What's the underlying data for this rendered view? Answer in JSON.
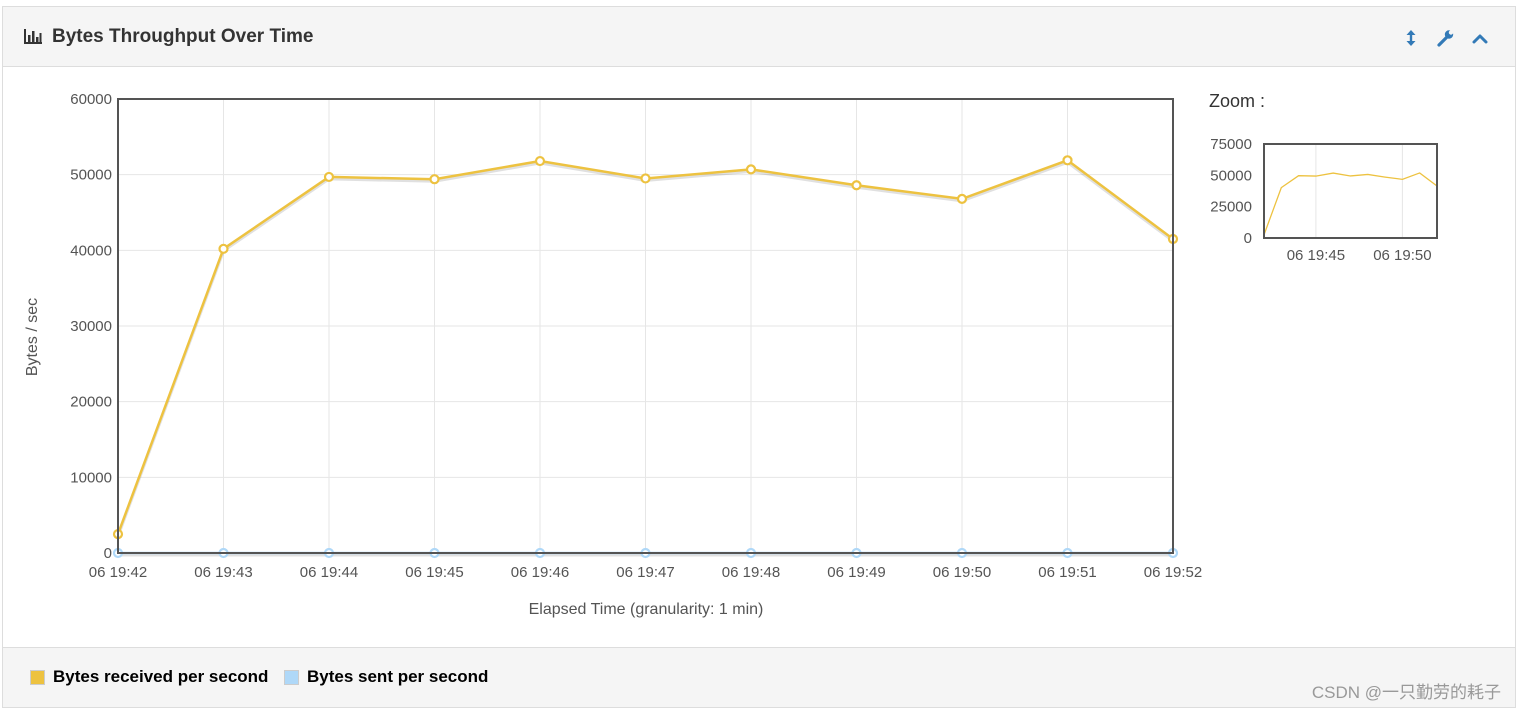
{
  "panel": {
    "title": "Bytes Throughput Over Time",
    "title_icon": "bar-chart-icon",
    "buttons": [
      {
        "name": "resize-button",
        "icon": "resize-vertical-icon"
      },
      {
        "name": "settings-button",
        "icon": "wrench-icon"
      },
      {
        "name": "collapse-button",
        "icon": "chevron-up-icon"
      }
    ]
  },
  "colors": {
    "received": "#edc240",
    "sent": "#afd8f8",
    "link": "#337ab7"
  },
  "chart_data": {
    "type": "line",
    "xlabel": "Elapsed Time (granularity: 1 min)",
    "ylabel": "Bytes / sec",
    "categories": [
      "06 19:42",
      "06 19:43",
      "06 19:44",
      "06 19:45",
      "06 19:46",
      "06 19:47",
      "06 19:48",
      "06 19:49",
      "06 19:50",
      "06 19:51",
      "06 19:52"
    ],
    "ylim": [
      0,
      60000
    ],
    "yticks": [
      "0",
      "10000",
      "20000",
      "30000",
      "40000",
      "50000",
      "60000"
    ],
    "grid": true,
    "legend_position": "bottom",
    "series": [
      {
        "name": "Bytes received per second",
        "values": [
          2500,
          40200,
          49700,
          49400,
          51800,
          49500,
          50700,
          48600,
          46800,
          51900,
          41500
        ]
      },
      {
        "name": "Bytes sent per second",
        "values": [
          0,
          0,
          0,
          0,
          0,
          0,
          0,
          0,
          0,
          0,
          0
        ]
      }
    ]
  },
  "zoom": {
    "label": "Zoom :",
    "yticks": [
      "0",
      "25000",
      "50000",
      "75000"
    ],
    "ylim": [
      0,
      75000
    ],
    "xticks": [
      "06 19:45",
      "06 19:50"
    ],
    "xtick_values": [
      3,
      8
    ]
  },
  "watermark": "CSDN @一只勤劳的耗子"
}
